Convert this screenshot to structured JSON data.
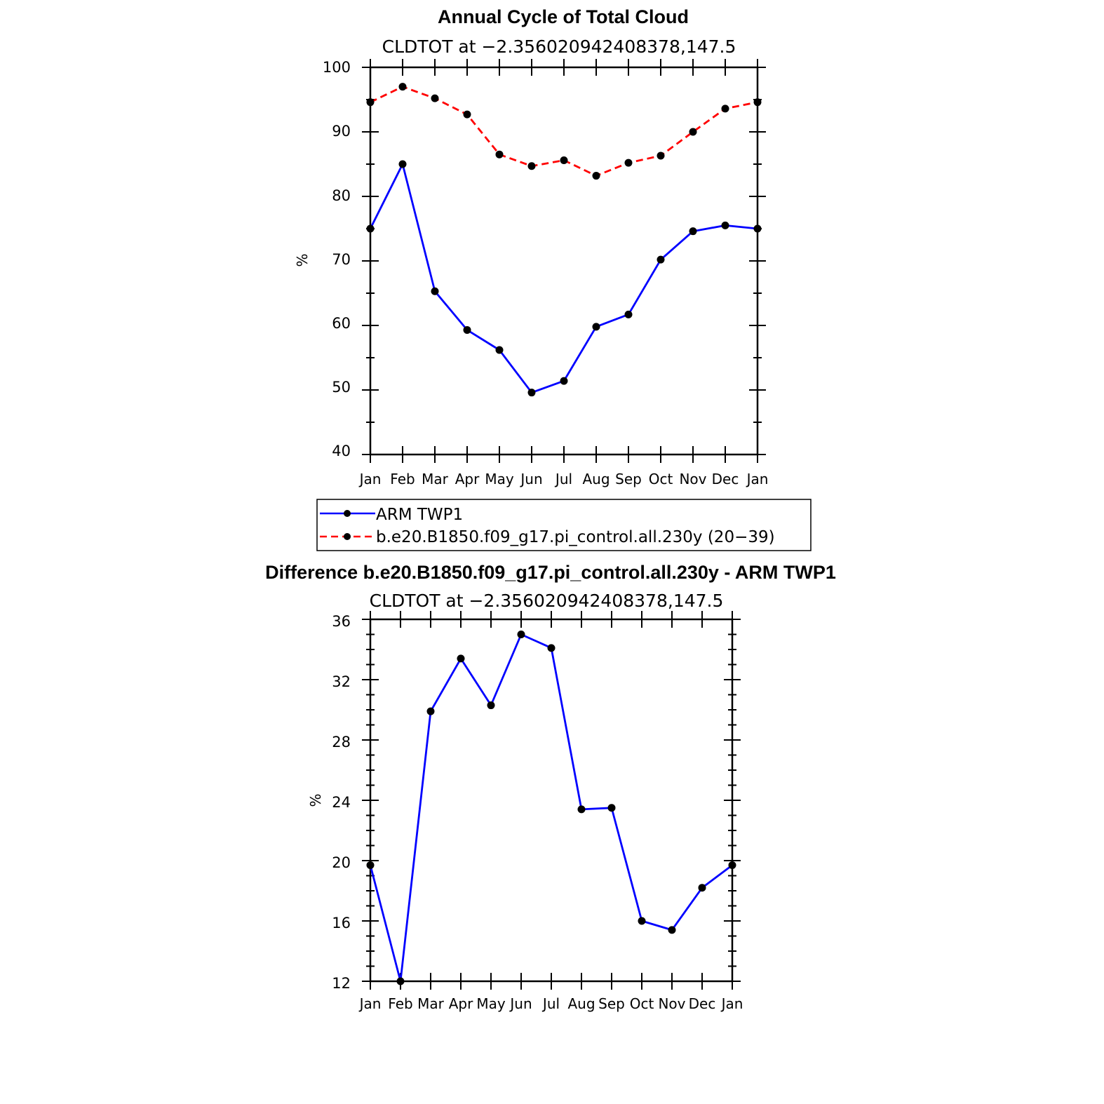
{
  "chart_data": [
    {
      "type": "line",
      "title": "Annual Cycle of Total Cloud",
      "subtitle": "CLDTOT at −2.356020942408378,147.5",
      "ylabel": "%",
      "xlabel": "",
      "ylim": [
        40,
        100
      ],
      "yticks": [
        "100",
        "90",
        "80",
        "70",
        "60",
        "50",
        "40"
      ],
      "categories": [
        "Jan",
        "Feb",
        "Mar",
        "Apr",
        "May",
        "Jun",
        "Jul",
        "Aug",
        "Sep",
        "Oct",
        "Nov",
        "Dec",
        "Jan"
      ],
      "series": [
        {
          "name": "ARM TWP1",
          "color": "#0000ff",
          "dash": "solid",
          "values": [
            75.0,
            85.0,
            65.3,
            59.3,
            56.2,
            49.6,
            51.4,
            59.8,
            61.7,
            70.2,
            74.6,
            75.5,
            75.0
          ]
        },
        {
          "name": "b.e20.B1850.f09_g17.pi_control.all.230y (20−39)",
          "color": "#ff0000",
          "dash": "dashed",
          "values": [
            94.6,
            97.0,
            95.2,
            92.7,
            86.5,
            84.7,
            85.6,
            83.2,
            85.2,
            86.3,
            90.0,
            93.6,
            94.6
          ]
        }
      ],
      "legend": {
        "location": "below",
        "entries": [
          "ARM TWP1",
          "b.e20.B1850.f09_g17.pi_control.all.230y (20−39)"
        ]
      }
    },
    {
      "type": "line",
      "title": "Difference b.e20.B1850.f09_g17.pi_control.all.230y - ARM TWP1",
      "subtitle": "CLDTOT at −2.356020942408378,147.5",
      "ylabel": "%",
      "xlabel": "",
      "ylim": [
        12,
        36
      ],
      "yticks": [
        "36",
        "32",
        "28",
        "24",
        "20",
        "16",
        "12"
      ],
      "categories": [
        "Jan",
        "Feb",
        "Mar",
        "Apr",
        "May",
        "Jun",
        "Jul",
        "Aug",
        "Sep",
        "Oct",
        "Nov",
        "Dec",
        "Jan"
      ],
      "series": [
        {
          "name": "Difference",
          "color": "#0000ff",
          "dash": "solid",
          "values": [
            19.7,
            12.0,
            29.9,
            33.4,
            30.3,
            35.0,
            34.1,
            23.4,
            23.5,
            16.0,
            15.4,
            18.2,
            19.7
          ]
        }
      ]
    }
  ]
}
